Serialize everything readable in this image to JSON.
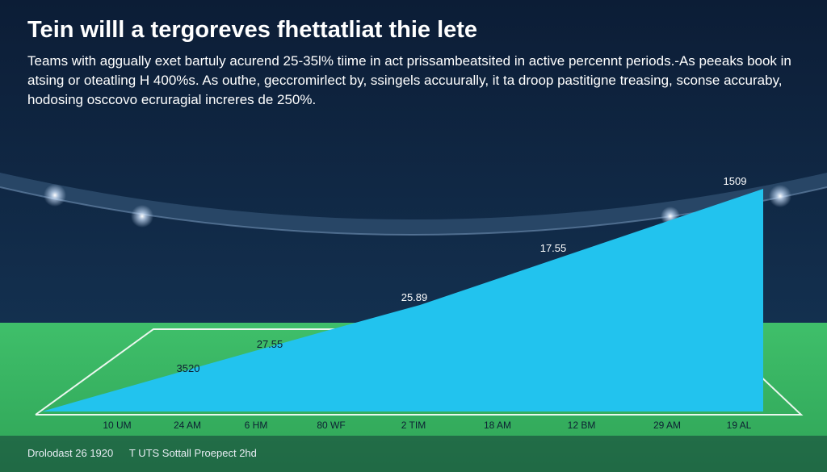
{
  "header": {
    "title": "Tein willl a tergoreves fhettatliat thie lete",
    "subtitle": "Teams with aggually exet bartuly acurend 25-35l% tiime in act prissambeatsited in active percennt periods.-As peeaks book in atsing or oteatling H 400%s. As outhe, geccromirlect by, ssingels accuurally, it ta droop pastitigne treasing, sconse accuraby, hodosing osccovo ecruragial increres de 250%."
  },
  "colors": {
    "sky": "#0f2340",
    "field": "#35b15f",
    "area": "#22c3ee",
    "text": "#ffffff",
    "lines": "#e9f7ee"
  },
  "chart_data": {
    "type": "area",
    "title": "",
    "xlabel": "",
    "ylabel": "",
    "categories": [
      "10 UM",
      "24 AM",
      "6 HM",
      "80 WF",
      "2 TIM",
      "18 AM",
      "12 BM",
      "29 AM",
      "19 AL"
    ],
    "grid": false,
    "legend": "none",
    "annotations": [
      "3520",
      "27.55",
      "25.89",
      "17.55",
      "1509"
    ]
  },
  "footer": {
    "left": "Drolodast 26 1920",
    "right": "T UTS Sottall Proepect 2hd"
  }
}
